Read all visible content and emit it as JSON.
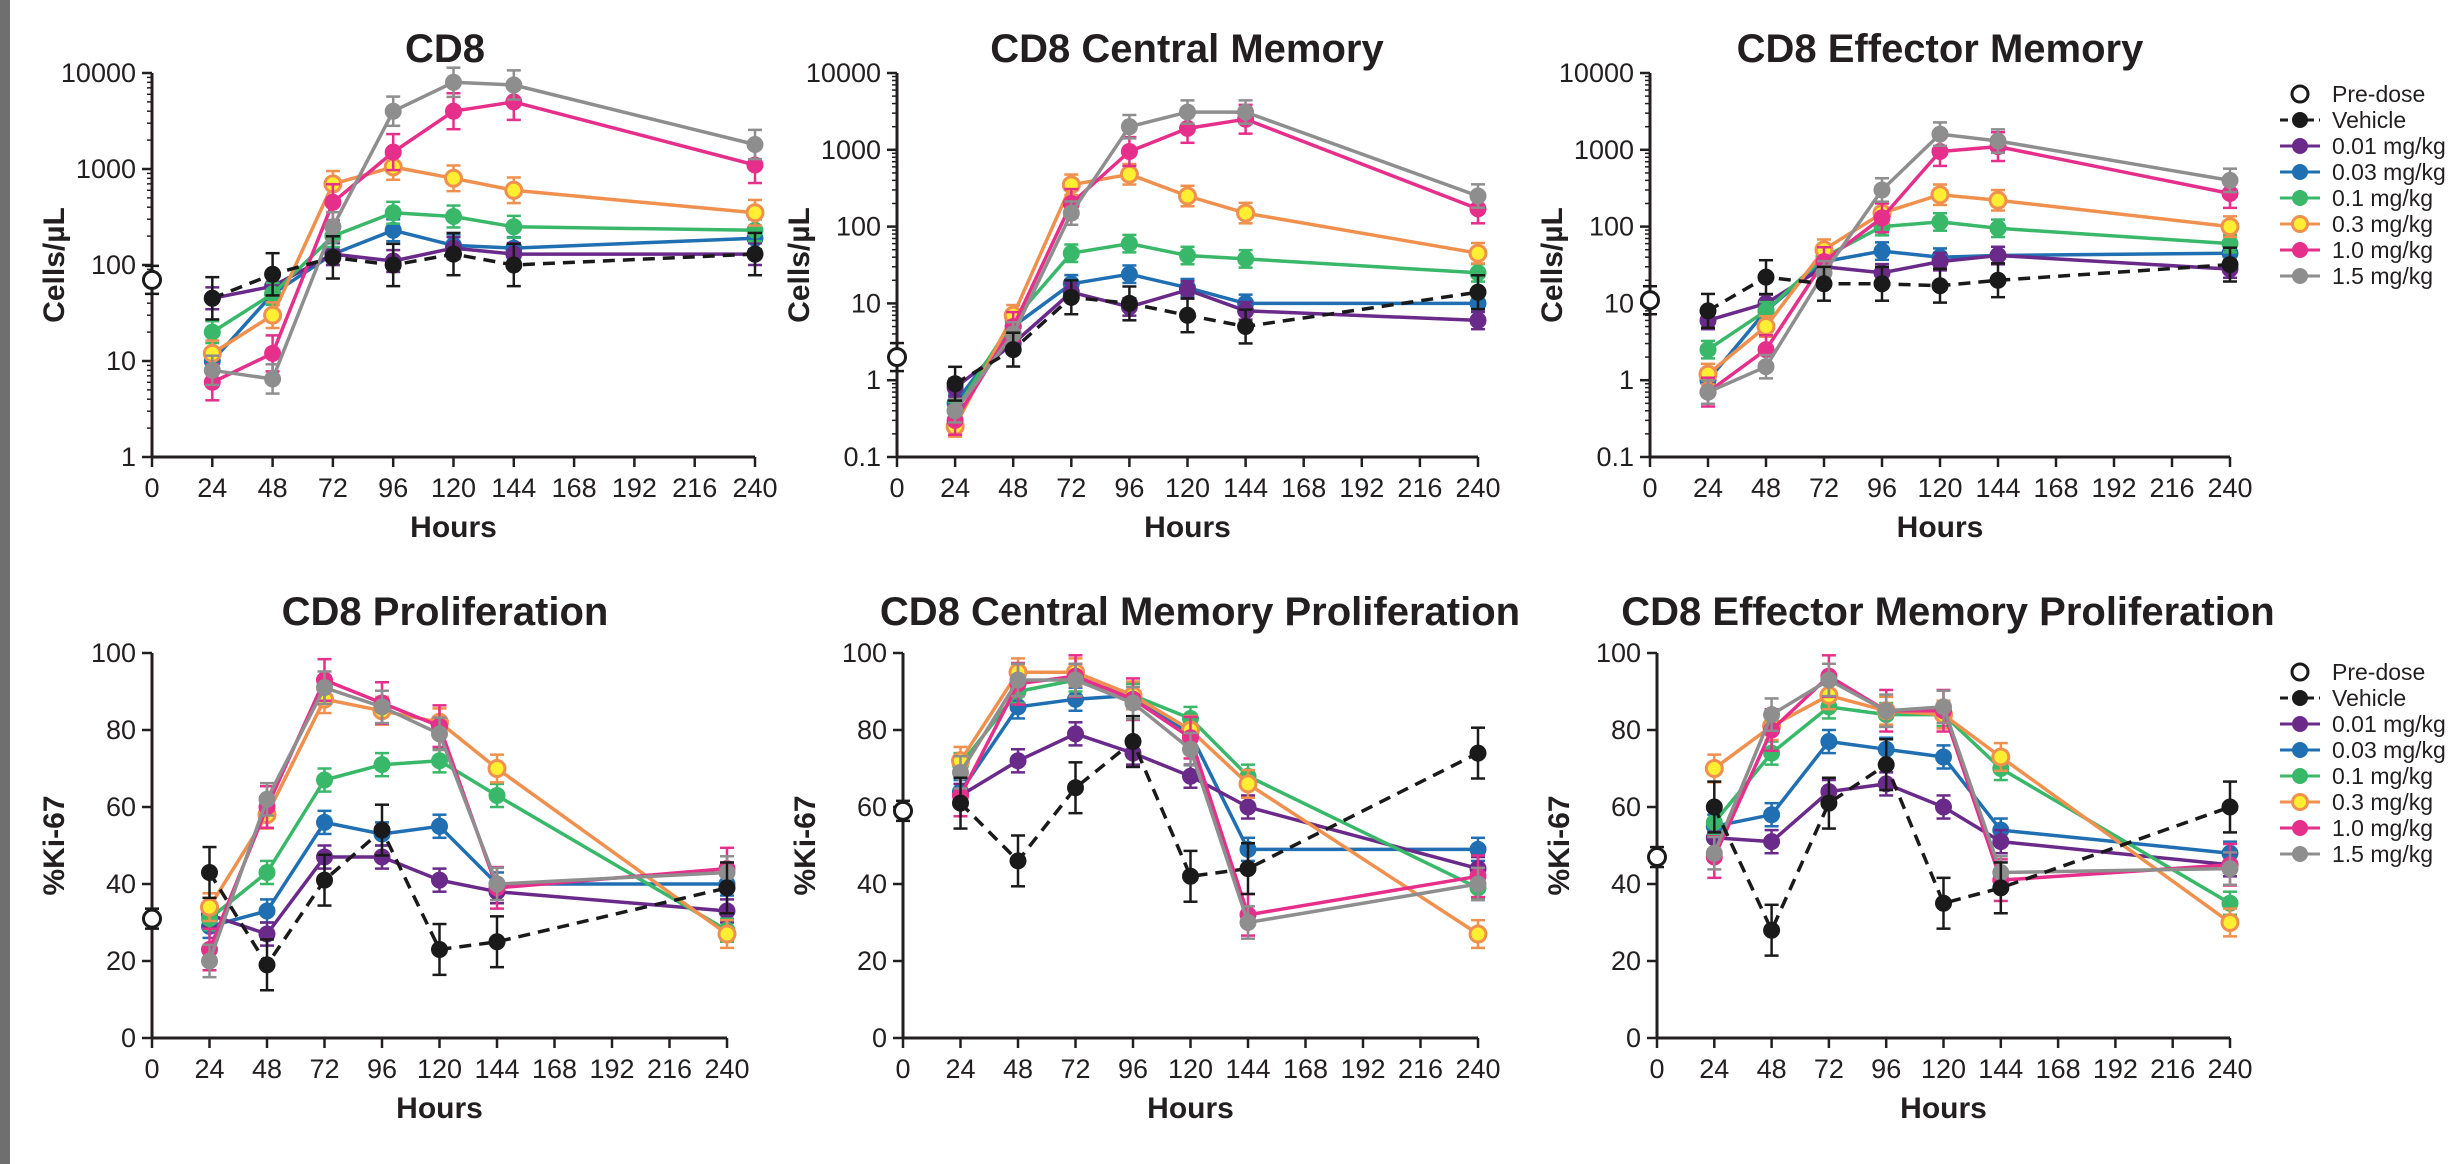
{
  "figure": {
    "colors": {
      "pre_dose": "#1a1a1a",
      "vehicle": "#1a1a1a",
      "0.01": "#6a2a8a",
      "0.03": "#1f6fb2",
      "0.1": "#39b86a",
      "0.3": "#f0904e",
      "1.0": "#e62e8b",
      "1.5": "#8e8e8e",
      "yellow_marker_fill": "#ffee32"
    },
    "legend": {
      "entries": [
        {
          "key": "pre_dose",
          "label": "Pre-dose",
          "style": "open-circle"
        },
        {
          "key": "vehicle",
          "label": "Vehicle",
          "style": "dashed"
        },
        {
          "key": "0.01",
          "label": "0.01 mg/kg",
          "style": "line"
        },
        {
          "key": "0.03",
          "label": "0.03 mg/kg",
          "style": "line"
        },
        {
          "key": "0.1",
          "label": "0.1 mg/kg",
          "style": "line"
        },
        {
          "key": "0.3",
          "label": "0.3 mg/kg",
          "style": "yellow"
        },
        {
          "key": "1.0",
          "label": "1.0 mg/kg",
          "style": "line"
        },
        {
          "key": "1.5",
          "label": "1.5 mg/kg",
          "style": "line"
        }
      ]
    }
  },
  "chart_data": [
    {
      "type": "line",
      "title": "CD8",
      "xlabel": "Hours",
      "ylabel": "Cells/µL",
      "yscale": "log",
      "ylim": [
        1,
        10000
      ],
      "yticks": [
        "1",
        "10",
        "100",
        "1000",
        "10000"
      ],
      "xticks": [
        "0",
        "24",
        "48",
        "72",
        "96",
        "120",
        "144",
        "168",
        "192",
        "216",
        "240"
      ],
      "pre_dose": {
        "x": 0,
        "y": 70
      },
      "series": [
        {
          "key": "vehicle",
          "x": [
            24,
            48,
            72,
            96,
            120,
            144,
            240
          ],
          "y": [
            45,
            80,
            120,
            100,
            130,
            100,
            130
          ]
        },
        {
          "key": "0.01",
          "x": [
            24,
            48,
            72,
            96,
            120,
            144,
            240
          ],
          "y": [
            45,
            60,
            130,
            110,
            150,
            130,
            130
          ]
        },
        {
          "key": "0.03",
          "x": [
            24,
            48,
            72,
            96,
            120,
            144,
            240
          ],
          "y": [
            10,
            50,
            130,
            230,
            160,
            150,
            190
          ]
        },
        {
          "key": "0.1",
          "x": [
            24,
            48,
            72,
            96,
            120,
            144,
            240
          ],
          "y": [
            20,
            50,
            200,
            350,
            320,
            250,
            230
          ]
        },
        {
          "key": "0.3",
          "x": [
            24,
            48,
            72,
            96,
            120,
            144,
            240
          ],
          "y": [
            12,
            30,
            700,
            1050,
            800,
            600,
            350
          ]
        },
        {
          "key": "1.0",
          "x": [
            24,
            48,
            72,
            96,
            120,
            144,
            240
          ],
          "y": [
            6,
            12,
            450,
            1500,
            4000,
            5000,
            1100
          ]
        },
        {
          "key": "1.5",
          "x": [
            24,
            48,
            72,
            96,
            120,
            144,
            240
          ],
          "y": [
            8,
            6.5,
            250,
            4000,
            8000,
            7500,
            1800
          ]
        }
      ]
    },
    {
      "type": "line",
      "title": "CD8 Central Memory",
      "xlabel": "Hours",
      "ylabel": "Cells/µL",
      "yscale": "log",
      "ylim": [
        0.1,
        10000
      ],
      "yticks": [
        "0.1",
        "1",
        "10",
        "100",
        "1000",
        "10000"
      ],
      "xticks": [
        "0",
        "24",
        "48",
        "72",
        "96",
        "120",
        "144",
        "168",
        "192",
        "216",
        "240"
      ],
      "pre_dose": {
        "x": 0,
        "y": 2
      },
      "series": [
        {
          "key": "vehicle",
          "x": [
            24,
            48,
            72,
            96,
            120,
            144,
            240
          ],
          "y": [
            0.9,
            2.5,
            12,
            10,
            7,
            5,
            14
          ]
        },
        {
          "key": "0.01",
          "x": [
            24,
            48,
            72,
            96,
            120,
            144,
            240
          ],
          "y": [
            0.8,
            3,
            14,
            9,
            15,
            8,
            6
          ]
        },
        {
          "key": "0.03",
          "x": [
            24,
            48,
            72,
            96,
            120,
            144,
            240
          ],
          "y": [
            0.5,
            5,
            18,
            24,
            16,
            10,
            10
          ]
        },
        {
          "key": "0.1",
          "x": [
            24,
            48,
            72,
            96,
            120,
            144,
            240
          ],
          "y": [
            0.4,
            6,
            45,
            60,
            42,
            38,
            25
          ]
        },
        {
          "key": "0.3",
          "x": [
            24,
            48,
            72,
            96,
            120,
            144,
            240
          ],
          "y": [
            0.25,
            7,
            350,
            480,
            250,
            150,
            45
          ]
        },
        {
          "key": "1.0",
          "x": [
            24,
            48,
            72,
            96,
            120,
            144,
            240
          ],
          "y": [
            0.3,
            5,
            200,
            950,
            1900,
            2500,
            170
          ]
        },
        {
          "key": "1.5",
          "x": [
            24,
            48,
            72,
            96,
            120,
            144,
            240
          ],
          "y": [
            0.4,
            4,
            150,
            2000,
            3100,
            3100,
            250
          ]
        }
      ]
    },
    {
      "type": "line",
      "title": "CD8 Effector Memory",
      "xlabel": "Hours",
      "ylabel": "Cells/µL",
      "yscale": "log",
      "ylim": [
        0.1,
        10000
      ],
      "yticks": [
        "0.1",
        "1",
        "10",
        "100",
        "1000",
        "10000"
      ],
      "xticks": [
        "0",
        "24",
        "48",
        "72",
        "96",
        "120",
        "144",
        "168",
        "192",
        "216",
        "240"
      ],
      "pre_dose": {
        "x": 0,
        "y": 11
      },
      "series": [
        {
          "key": "vehicle",
          "x": [
            24,
            48,
            72,
            96,
            120,
            144,
            240
          ],
          "y": [
            8,
            22,
            18,
            18,
            17,
            20,
            32
          ]
        },
        {
          "key": "0.01",
          "x": [
            24,
            48,
            72,
            96,
            120,
            144,
            240
          ],
          "y": [
            6,
            10,
            30,
            25,
            35,
            42,
            28
          ]
        },
        {
          "key": "0.03",
          "x": [
            24,
            48,
            72,
            96,
            120,
            144,
            240
          ],
          "y": [
            1,
            8,
            35,
            48,
            40,
            42,
            45
          ]
        },
        {
          "key": "0.1",
          "x": [
            24,
            48,
            72,
            96,
            120,
            144,
            240
          ],
          "y": [
            2.5,
            8,
            40,
            100,
            115,
            95,
            60
          ]
        },
        {
          "key": "0.3",
          "x": [
            24,
            48,
            72,
            96,
            120,
            144,
            240
          ],
          "y": [
            1.2,
            5,
            50,
            150,
            260,
            220,
            100
          ]
        },
        {
          "key": "1.0",
          "x": [
            24,
            48,
            72,
            96,
            120,
            144,
            240
          ],
          "y": [
            0.7,
            2.5,
            35,
            130,
            950,
            1100,
            270
          ]
        },
        {
          "key": "1.5",
          "x": [
            24,
            48,
            72,
            96,
            120,
            144,
            240
          ],
          "y": [
            0.7,
            1.5,
            25,
            300,
            1600,
            1300,
            400
          ]
        }
      ]
    },
    {
      "type": "line",
      "title": "CD8 Proliferation",
      "xlabel": "Hours",
      "ylabel": "%Ki-67",
      "yscale": "linear",
      "ylim": [
        0,
        100
      ],
      "yticks": [
        "0",
        "20",
        "40",
        "60",
        "80",
        "100"
      ],
      "xticks": [
        "0",
        "24",
        "48",
        "72",
        "96",
        "120",
        "144",
        "168",
        "192",
        "216",
        "240"
      ],
      "pre_dose": {
        "x": 0,
        "y": 31
      },
      "series": [
        {
          "key": "vehicle",
          "x": [
            24,
            48,
            72,
            96,
            120,
            144,
            240
          ],
          "y": [
            43,
            19,
            41,
            54,
            23,
            25,
            39
          ]
        },
        {
          "key": "0.01",
          "x": [
            24,
            48,
            72,
            96,
            120,
            144,
            240
          ],
          "y": [
            32,
            27,
            47,
            47,
            41,
            38,
            33
          ]
        },
        {
          "key": "0.03",
          "x": [
            24,
            48,
            72,
            96,
            120,
            144,
            240
          ],
          "y": [
            29,
            33,
            56,
            53,
            55,
            40,
            40
          ]
        },
        {
          "key": "0.1",
          "x": [
            24,
            48,
            72,
            96,
            120,
            144,
            240
          ],
          "y": [
            31,
            43,
            67,
            71,
            72,
            63,
            28
          ]
        },
        {
          "key": "0.3",
          "x": [
            24,
            48,
            72,
            96,
            120,
            144,
            240
          ],
          "y": [
            34,
            58,
            88,
            85,
            82,
            70,
            27
          ]
        },
        {
          "key": "1.0",
          "x": [
            24,
            48,
            72,
            96,
            120,
            144,
            240
          ],
          "y": [
            23,
            60,
            93,
            87,
            81,
            39,
            44
          ]
        },
        {
          "key": "1.5",
          "x": [
            24,
            48,
            72,
            96,
            120,
            144,
            240
          ],
          "y": [
            20,
            62,
            91,
            86,
            79,
            40,
            43
          ]
        }
      ]
    },
    {
      "type": "line",
      "title": "CD8 Central Memory Proliferation",
      "xlabel": "Hours",
      "ylabel": "%Ki-67",
      "yscale": "linear",
      "ylim": [
        0,
        100
      ],
      "yticks": [
        "0",
        "20",
        "40",
        "60",
        "80",
        "100"
      ],
      "xticks": [
        "0",
        "24",
        "48",
        "72",
        "96",
        "120",
        "144",
        "168",
        "192",
        "216",
        "240"
      ],
      "pre_dose": {
        "x": 0,
        "y": 59
      },
      "series": [
        {
          "key": "vehicle",
          "x": [
            24,
            48,
            72,
            96,
            120,
            144,
            240
          ],
          "y": [
            61,
            46,
            65,
            77,
            42,
            44,
            74
          ]
        },
        {
          "key": "0.01",
          "x": [
            24,
            48,
            72,
            96,
            120,
            144,
            240
          ],
          "y": [
            63,
            72,
            79,
            74,
            68,
            60,
            44
          ]
        },
        {
          "key": "0.03",
          "x": [
            24,
            48,
            72,
            96,
            120,
            144,
            240
          ],
          "y": [
            64,
            86,
            88,
            89,
            79,
            49,
            49
          ]
        },
        {
          "key": "0.1",
          "x": [
            24,
            48,
            72,
            96,
            120,
            144,
            240
          ],
          "y": [
            71,
            90,
            93,
            89,
            83,
            68,
            39
          ]
        },
        {
          "key": "0.3",
          "x": [
            24,
            48,
            72,
            96,
            120,
            144,
            240
          ],
          "y": [
            72,
            95,
            95,
            89,
            80,
            66,
            27
          ]
        },
        {
          "key": "1.0",
          "x": [
            24,
            48,
            72,
            96,
            120,
            144,
            240
          ],
          "y": [
            63,
            92,
            94,
            88,
            78,
            32,
            42
          ]
        },
        {
          "key": "1.5",
          "x": [
            24,
            48,
            72,
            96,
            120,
            144,
            240
          ],
          "y": [
            69,
            93,
            93,
            87,
            75,
            30,
            40
          ]
        }
      ]
    },
    {
      "type": "line",
      "title": "CD8 Effector Memory Proliferation",
      "xlabel": "Hours",
      "ylabel": "%Ki-67",
      "yscale": "linear",
      "ylim": [
        0,
        100
      ],
      "yticks": [
        "0",
        "20",
        "40",
        "60",
        "80",
        "100"
      ],
      "xticks": [
        "0",
        "24",
        "48",
        "72",
        "96",
        "120",
        "144",
        "168",
        "192",
        "216",
        "240"
      ],
      "pre_dose": {
        "x": 0,
        "y": 47
      },
      "series": [
        {
          "key": "vehicle",
          "x": [
            24,
            48,
            72,
            96,
            120,
            144,
            240
          ],
          "y": [
            60,
            28,
            61,
            71,
            35,
            39,
            60
          ]
        },
        {
          "key": "0.01",
          "x": [
            24,
            48,
            72,
            96,
            120,
            144,
            240
          ],
          "y": [
            52,
            51,
            64,
            66,
            60,
            51,
            45
          ]
        },
        {
          "key": "0.03",
          "x": [
            24,
            48,
            72,
            96,
            120,
            144,
            240
          ],
          "y": [
            55,
            58,
            77,
            75,
            73,
            54,
            48
          ]
        },
        {
          "key": "0.1",
          "x": [
            24,
            48,
            72,
            96,
            120,
            144,
            240
          ],
          "y": [
            56,
            74,
            86,
            84,
            84,
            70,
            35
          ]
        },
        {
          "key": "0.3",
          "x": [
            24,
            48,
            72,
            96,
            120,
            144,
            240
          ],
          "y": [
            70,
            81,
            89,
            85,
            84,
            73,
            30
          ]
        },
        {
          "key": "1.0",
          "x": [
            24,
            48,
            72,
            96,
            120,
            144,
            240
          ],
          "y": [
            47,
            80,
            94,
            85,
            85,
            41,
            45
          ]
        },
        {
          "key": "1.5",
          "x": [
            24,
            48,
            72,
            96,
            120,
            144,
            240
          ],
          "y": [
            48,
            84,
            93,
            85,
            86,
            43,
            44
          ]
        }
      ]
    }
  ]
}
